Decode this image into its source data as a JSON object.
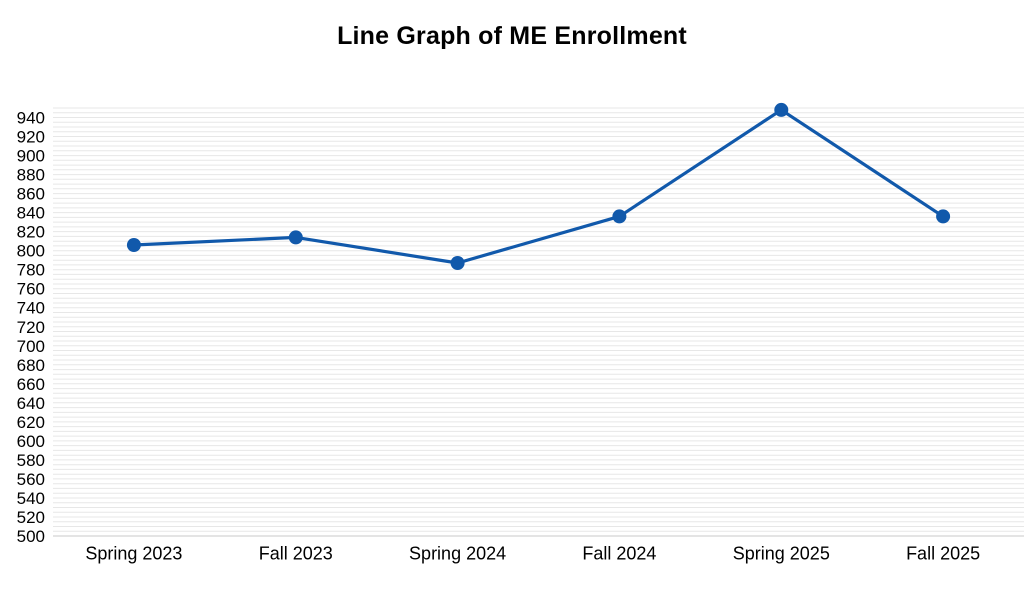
{
  "page": {
    "background": "#ffffff"
  },
  "chart_data": {
    "type": "line",
    "title": "Line Graph of ME Enrollment",
    "categories": [
      "Spring 2023",
      "Fall 2023",
      "Spring 2024",
      "Fall 2024",
      "Spring 2025",
      "Fall 2025"
    ],
    "series": [
      {
        "name": "ME Enrollment",
        "color": "#1159ab",
        "values": [
          806,
          814,
          787,
          836,
          948,
          836
        ]
      }
    ],
    "xlabel": "",
    "ylabel": "",
    "ylim": [
      500,
      950
    ],
    "y_label_min": 500,
    "y_label_max": 940,
    "y_label_step": 20,
    "y_minor_grid_step": 5,
    "grid": "horizontal-minor",
    "legend": "none",
    "marker": "circle",
    "gridline_color": "#e7e7e7",
    "axis_line_color": "#c8c8c8",
    "tick_label_color": "#000000",
    "title_color": "#000000"
  }
}
